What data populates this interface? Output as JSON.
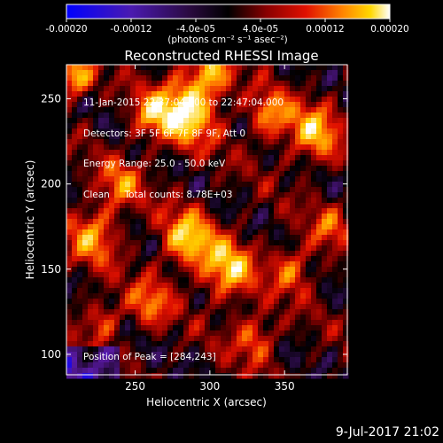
{
  "chart_data": {
    "type": "heatmap",
    "title": "Reconstructed RHESSI Image",
    "xlabel": "Heliocentric X (arcsec)",
    "ylabel": "Heliocentric Y (arcsec)",
    "xlim": [
      204,
      392
    ],
    "ylim": [
      88,
      270
    ],
    "xticks": [
      250,
      300,
      350
    ],
    "yticks": [
      100,
      150,
      200,
      250
    ],
    "grid": false,
    "colorbar": {
      "position": "top",
      "range": [
        -0.0002,
        0.0002
      ],
      "ticks": [
        "-0.00020",
        "-0.00012",
        "-4.0e-05",
        "4.0e-05",
        "0.00012",
        "0.00020"
      ],
      "label": "(photons cm⁻² s⁻¹ asec⁻²)",
      "colormap": [
        "#0000ff",
        "#5a1aa6",
        "#3a1060",
        "#000000",
        "#7a0000",
        "#e01000",
        "#ff7a00",
        "#ffd000",
        "#ffffff"
      ]
    },
    "info": [
      "11-Jan-2015 22:37:04.000 to 22:47:04.000",
      "Detectors: 3F 5F 6F 7F 8F 9F, Att 0",
      "Energy Range: 25.0 - 50.0 keV",
      "Clean     Total counts: 8.78E+03"
    ],
    "peak_label": "Position of Peak = [284,243]",
    "peak": [
      284,
      243
    ]
  },
  "footer": {
    "date": "9-Jul-2017 21:02"
  }
}
